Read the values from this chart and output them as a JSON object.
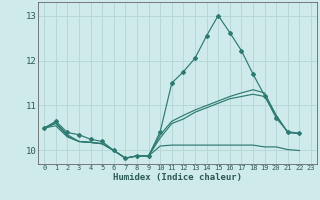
{
  "xlabel": "Humidex (Indice chaleur)",
  "bg_color": "#ceeaea",
  "grid_color": "#b8d8d8",
  "line_color": "#2d7a72",
  "xlim": [
    -0.5,
    23.5
  ],
  "ylim": [
    9.7,
    13.3
  ],
  "yticks": [
    10,
    11,
    12,
    13
  ],
  "xticks": [
    0,
    1,
    2,
    3,
    4,
    5,
    6,
    7,
    8,
    9,
    10,
    11,
    12,
    13,
    14,
    15,
    16,
    17,
    18,
    19,
    20,
    21,
    22,
    23
  ],
  "series": [
    {
      "x": [
        0,
        1,
        2,
        3,
        4,
        5,
        6,
        7,
        8,
        9,
        10,
        11,
        12,
        13,
        14,
        15,
        16,
        17,
        18,
        19,
        20,
        21,
        22
      ],
      "y": [
        10.5,
        10.65,
        10.4,
        10.35,
        10.25,
        10.2,
        10.0,
        9.83,
        9.88,
        9.88,
        10.42,
        11.5,
        11.75,
        12.05,
        12.55,
        13.0,
        12.62,
        12.22,
        11.7,
        11.22,
        10.72,
        10.42,
        10.38
      ],
      "has_markers": true
    },
    {
      "x": [
        0,
        1,
        2,
        3,
        4,
        5,
        6,
        7,
        8,
        9,
        10,
        11,
        12,
        13,
        14,
        15,
        16,
        17,
        18,
        19,
        20,
        21,
        22
      ],
      "y": [
        10.5,
        10.62,
        10.35,
        10.2,
        10.18,
        10.15,
        10.0,
        9.83,
        9.88,
        9.88,
        10.35,
        10.65,
        10.78,
        10.9,
        11.0,
        11.1,
        11.2,
        11.28,
        11.35,
        11.28,
        10.78,
        10.4,
        10.38
      ],
      "has_markers": false
    },
    {
      "x": [
        0,
        1,
        2,
        3,
        4,
        5,
        6,
        7,
        8,
        9,
        10,
        11,
        12,
        13,
        14,
        15,
        16,
        17,
        18,
        19,
        20,
        21,
        22
      ],
      "y": [
        10.5,
        10.55,
        10.3,
        10.2,
        10.18,
        10.15,
        10.0,
        9.83,
        9.88,
        9.88,
        10.1,
        10.12,
        10.12,
        10.12,
        10.12,
        10.12,
        10.12,
        10.12,
        10.12,
        10.08,
        10.08,
        10.02,
        10.0
      ],
      "has_markers": false
    },
    {
      "x": [
        0,
        1,
        2,
        3,
        4,
        5,
        6,
        7,
        8,
        9,
        10,
        11,
        12,
        13,
        14,
        15,
        16,
        17,
        18,
        19,
        20,
        21,
        22
      ],
      "y": [
        10.5,
        10.6,
        10.32,
        10.2,
        10.18,
        10.15,
        10.0,
        9.83,
        9.88,
        9.88,
        10.28,
        10.6,
        10.7,
        10.85,
        10.95,
        11.05,
        11.15,
        11.2,
        11.25,
        11.2,
        10.78,
        10.4,
        10.38
      ],
      "has_markers": false
    }
  ]
}
